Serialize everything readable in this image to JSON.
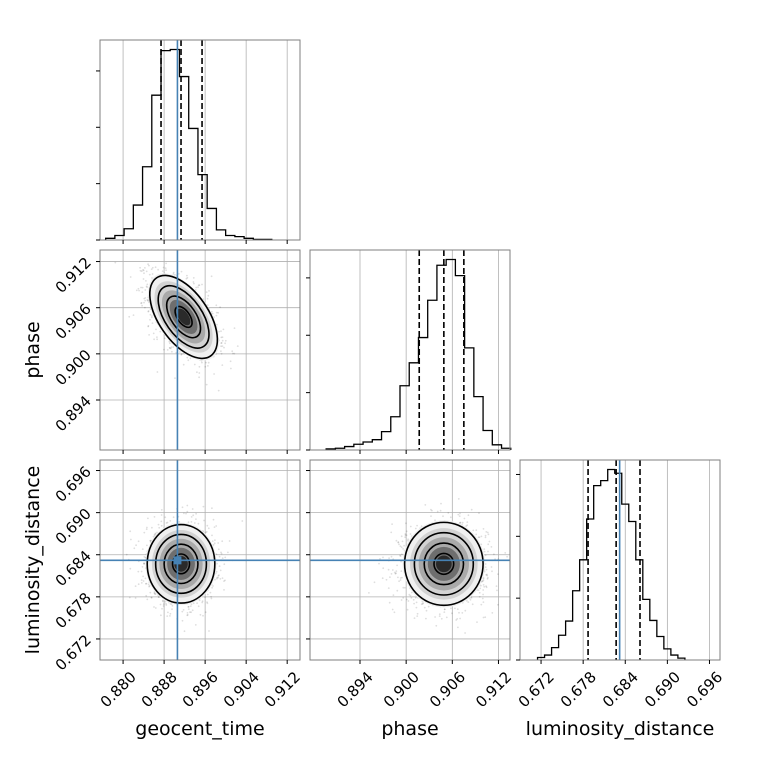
{
  "chart_data": {
    "type": "corner",
    "parameters": [
      "geocent_time",
      "phase",
      "luminosity_distance"
    ],
    "axis_labels": [
      "geocent_time",
      "phase",
      "luminosity_distance"
    ],
    "ranges": {
      "geocent_time": [
        0.8755,
        0.9145
      ],
      "phase": [
        0.8875,
        0.9135
      ],
      "luminosity_distance": [
        0.669,
        0.6975
      ]
    },
    "ticks": {
      "geocent_time": [
        "0.880",
        "0.888",
        "0.896",
        "0.904",
        "0.912"
      ],
      "phase": [
        "0.894",
        "0.900",
        "0.906",
        "0.912"
      ],
      "luminosity_distance": [
        "0.672",
        "0.678",
        "0.684",
        "0.690",
        "0.696"
      ]
    },
    "truths": {
      "geocent_time": 0.8906,
      "phase": null,
      "luminosity_distance": 0.6832
    },
    "truth_color": "#4682b4",
    "histograms": {
      "geocent_time": {
        "bin_width": 0.0018,
        "bin_starts": [
          0.8766,
          0.8784,
          0.8802,
          0.882,
          0.8838,
          0.8856,
          0.8874,
          0.8892,
          0.891,
          0.8928,
          0.8946,
          0.8964,
          0.8982,
          0.9,
          0.9018,
          0.9036,
          0.9054,
          0.9072
        ],
        "counts": [
          3,
          8,
          20,
          62,
          130,
          257,
          336,
          338,
          290,
          198,
          116,
          56,
          18,
          8,
          6,
          3,
          1,
          1
        ],
        "quantiles": [
          0.8874,
          0.8913,
          0.8954
        ]
      },
      "phase": {
        "bin_width": 0.0012,
        "bin_starts": [
          0.8896,
          0.8908,
          0.892,
          0.8932,
          0.8944,
          0.8956,
          0.8968,
          0.898,
          0.8992,
          0.9004,
          0.9016,
          0.9028,
          0.904,
          0.9052,
          0.9064,
          0.9076,
          0.9088,
          0.91,
          0.9112,
          0.9124
        ],
        "counts": [
          2,
          3,
          6,
          10,
          14,
          18,
          32,
          58,
          112,
          152,
          196,
          261,
          322,
          332,
          304,
          178,
          93,
          34,
          9,
          3
        ],
        "quantiles": [
          0.9017,
          0.9049,
          0.9075
        ]
      },
      "luminosity_distance": {
        "bin_width": 0.001,
        "bin_starts": [
          0.6715,
          0.6725,
          0.6735,
          0.6745,
          0.6755,
          0.6765,
          0.6775,
          0.6785,
          0.6795,
          0.6805,
          0.6815,
          0.6825,
          0.6835,
          0.6845,
          0.6855,
          0.6865,
          0.6875,
          0.6885,
          0.6895,
          0.6905,
          0.6915
        ],
        "counts": [
          4,
          8,
          20,
          40,
          63,
          112,
          162,
          228,
          282,
          290,
          308,
          302,
          252,
          224,
          162,
          98,
          64,
          38,
          18,
          8,
          3
        ],
        "quantiles": [
          0.6787,
          0.6827,
          0.6861
        ]
      }
    },
    "density_2d": [
      {
        "x": "geocent_time",
        "y": "phase",
        "center": [
          0.8918,
          0.9048
        ],
        "sd": [
          0.0033,
          0.0027
        ],
        "correlation": -0.55,
        "scatter_points": 1600
      },
      {
        "x": "geocent_time",
        "y": "luminosity_distance",
        "center": [
          0.8913,
          0.6827
        ],
        "sd": [
          0.0033,
          0.0028
        ],
        "correlation": 0.0,
        "scatter_points": 1600
      },
      {
        "x": "phase",
        "y": "luminosity_distance",
        "center": [
          0.9049,
          0.6827
        ],
        "sd": [
          0.0027,
          0.0028
        ],
        "correlation": 0.0,
        "scatter_points": 1600
      }
    ],
    "contour_levels": [
      0.118,
      0.393,
      0.675,
      0.864
    ],
    "grid": true
  }
}
